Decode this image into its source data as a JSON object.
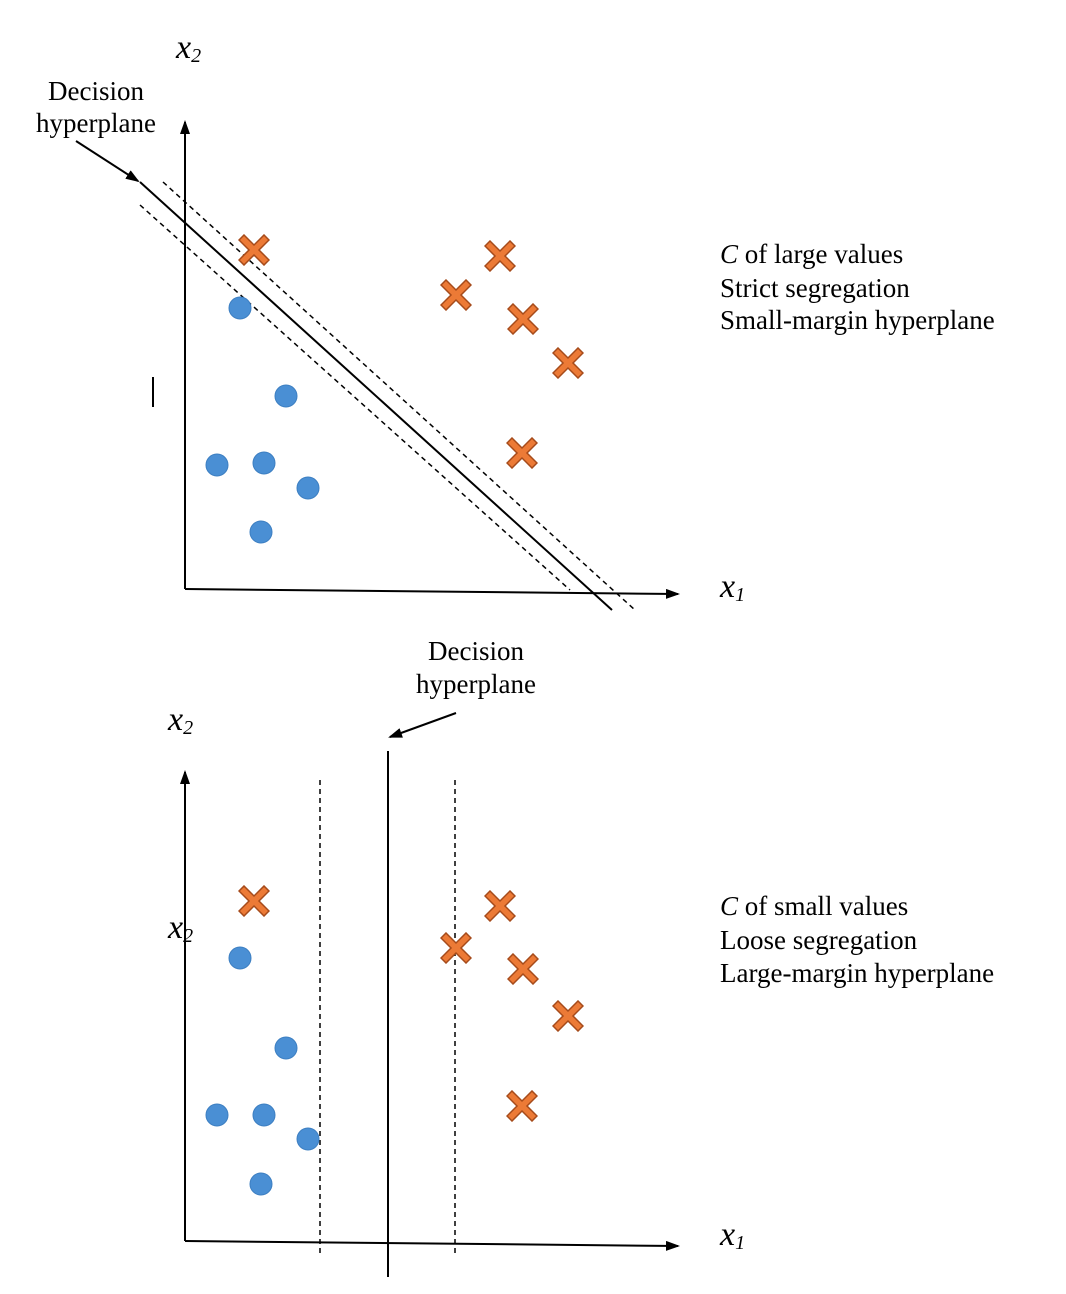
{
  "panel_top": {
    "x_axis_label": "x",
    "x_axis_subscript": "1",
    "y_axis_label": "x",
    "y_axis_subscript": "2",
    "callout_line1": "Decision",
    "callout_line2": "hyperplane",
    "description": {
      "line1_italic": "C",
      "line1_rest": " of large values",
      "line2": "Strict segregation",
      "line3": "Small-margin hyperplane"
    },
    "circle_color": "#4a8fd4",
    "cross_color": "#ec7a36"
  },
  "panel_bottom": {
    "x_axis_label": "x",
    "x_axis_subscript": "1",
    "y_axis_label": "x",
    "y_axis_subscript": "2",
    "y_axis_label_inner": "x",
    "y_axis_subscript_inner": "2",
    "callout_line1": "Decision",
    "callout_line2": "hyperplane",
    "description": {
      "line1_italic": "C",
      "line1_rest": " of small values",
      "line2": "Loose segregation",
      "line3": "Large-margin hyperplane"
    },
    "circle_color": "#4a8fd4",
    "cross_color": "#ec7a36"
  }
}
